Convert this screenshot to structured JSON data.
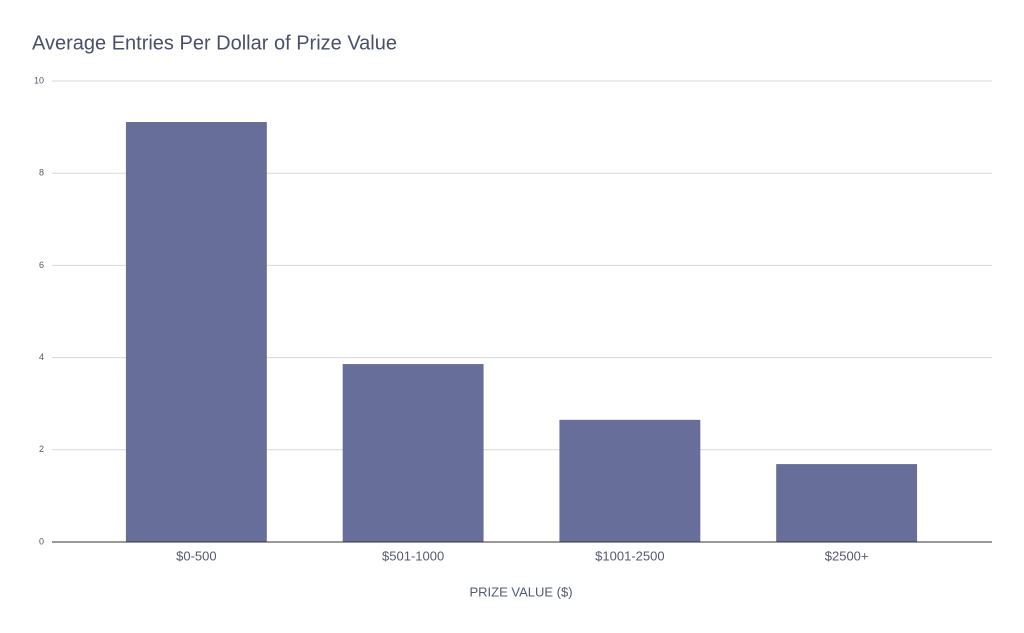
{
  "chart_data": {
    "type": "bar",
    "title": "Average Entries Per Dollar of Prize Value",
    "x_label": "PRIZE VALUE ($)",
    "categories": [
      "$0-500",
      "$501-1000",
      "$1001-2500",
      "$2500+"
    ],
    "values": [
      9.11,
      3.86,
      2.65,
      1.69
    ],
    "color": "#666e99",
    "ylim": [
      0,
      10
    ],
    "yticks": [
      0,
      2,
      4,
      6,
      8,
      10
    ],
    "grid": true
  }
}
